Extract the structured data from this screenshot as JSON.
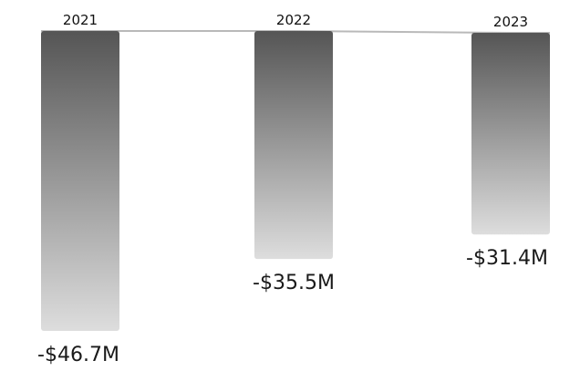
{
  "chart_data": {
    "type": "bar",
    "categories": [
      "2021",
      "2022",
      "2023"
    ],
    "values": [
      -46.7,
      -35.5,
      -31.4
    ],
    "value_labels": [
      "-$46.7M",
      "-$35.5M",
      "-$31.4M"
    ],
    "title": "",
    "xlabel": "",
    "ylabel": "",
    "ylim": [
      -46.7,
      0
    ],
    "grid": false,
    "bar_gradient": [
      "#555555",
      "#dddddd"
    ],
    "baseline_color": "#b9b9b9"
  }
}
